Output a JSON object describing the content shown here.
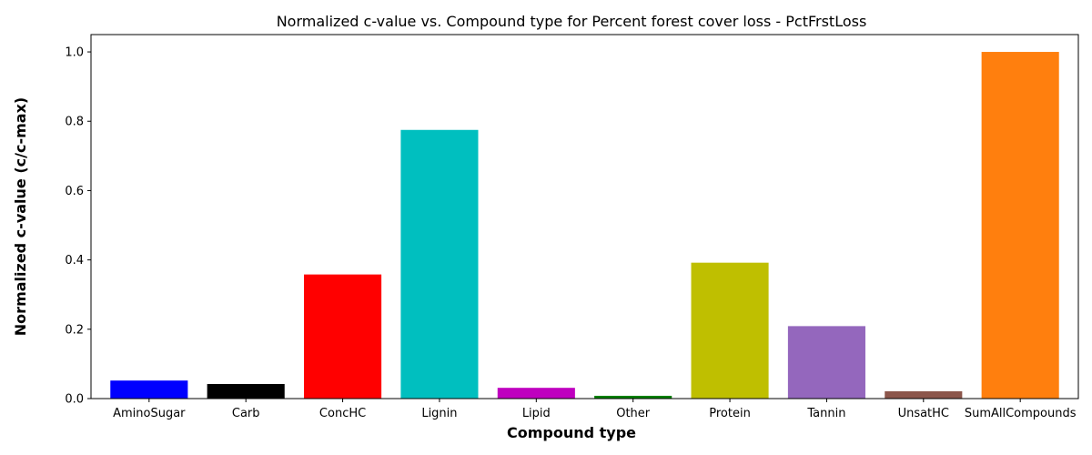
{
  "chart_data": {
    "type": "bar",
    "title": "Normalized c-value vs. Compound type for Percent forest cover loss - PctFrstLoss",
    "xlabel": "Compound type",
    "ylabel": "Normalized c-value (c/c-max)",
    "categories": [
      "AminoSugar",
      "Carb",
      "ConcHC",
      "Lignin",
      "Lipid",
      "Other",
      "Protein",
      "Tannin",
      "UnsatHC",
      "SumAllCompounds"
    ],
    "values": [
      0.052,
      0.042,
      0.358,
      0.775,
      0.031,
      0.008,
      0.392,
      0.209,
      0.021,
      1.0
    ],
    "colors": [
      "#0000ff",
      "#000000",
      "#ff0000",
      "#00bfbf",
      "#bf00bf",
      "#008000",
      "#bfbf00",
      "#9467bd",
      "#8c564b",
      "#ff7f0e"
    ],
    "yticks": [
      "0.0",
      "0.2",
      "0.4",
      "0.6",
      "0.8",
      "1.0"
    ],
    "ylim": [
      0,
      1.05
    ],
    "grid": false,
    "legend": false
  }
}
